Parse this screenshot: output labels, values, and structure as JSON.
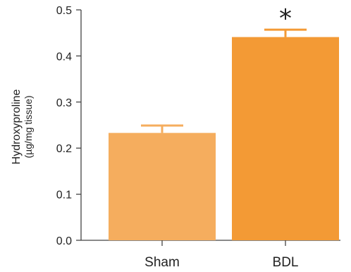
{
  "chart_data": {
    "type": "bar",
    "categories": [
      "Sham",
      "BDL"
    ],
    "values": [
      0.233,
      0.441
    ],
    "errors": [
      0.016,
      0.016
    ],
    "annotations": [
      "",
      "*"
    ],
    "ylabel": "Hydroxyproline",
    "ylabel_unit": "(µg/mg tissue)",
    "ylim": [
      0,
      0.5
    ],
    "yticks": [
      0.0,
      0.1,
      0.2,
      0.3,
      0.4,
      0.5
    ],
    "ytick_labels": [
      "0.0",
      "0.1",
      "0.2",
      "0.3",
      "0.4",
      "0.5"
    ],
    "colors": [
      "#f5ad5e",
      "#f39a35"
    ],
    "grid": false,
    "legend": "none"
  }
}
